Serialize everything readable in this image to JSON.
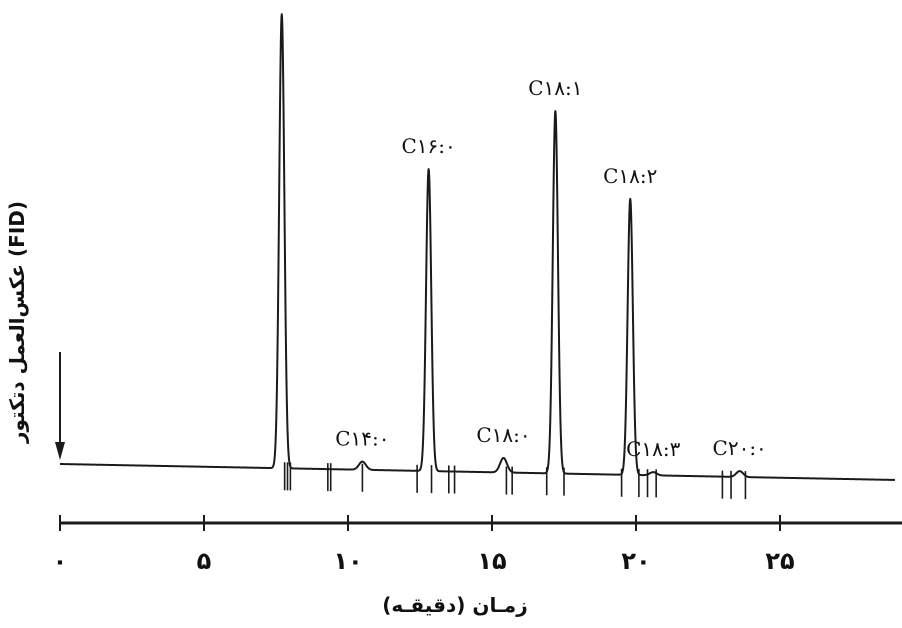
{
  "chart_data": {
    "type": "line",
    "xlabel": "زمـان (دقیقـه)",
    "ylabel": "(FID) عکس‌العمل دتکتور",
    "xlim": [
      0,
      29
    ],
    "ylim": [
      0,
      100
    ],
    "grid": false,
    "x_ticks": [
      0,
      5,
      10,
      15,
      20,
      25
    ],
    "x_tick_labels": [
      "۰",
      "۵",
      "۱۰",
      "۱۵",
      "۲۰",
      "۲۵"
    ],
    "injection_time": 0,
    "solvent_peak": {
      "time": 7.7,
      "height": 100
    },
    "peaks": [
      {
        "label": "C۱۴:۰",
        "time": 10.5,
        "height": 1.8
      },
      {
        "label": "C۱۶:۰",
        "time": 12.8,
        "height": 66.5
      },
      {
        "label": "C۱۸:۰",
        "time": 15.4,
        "height": 3.2
      },
      {
        "label": "C۱۸:۱",
        "time": 17.2,
        "height": 79.8
      },
      {
        "label": "C۱۸:۲",
        "time": 19.8,
        "height": 60.8
      },
      {
        "label": "C۱۸:۳",
        "time": 20.6,
        "height": 0.7
      },
      {
        "label": "C۲۰:۰",
        "time": 23.6,
        "height": 1.3
      }
    ],
    "integration_marks": [
      7.8,
      7.9,
      8.0,
      9.3,
      9.4,
      10.5,
      12.4,
      12.9,
      13.5,
      13.7,
      15.5,
      15.7,
      16.9,
      17.5,
      19.5,
      20.1,
      20.4,
      20.7,
      23.0,
      23.3,
      23.8
    ]
  }
}
